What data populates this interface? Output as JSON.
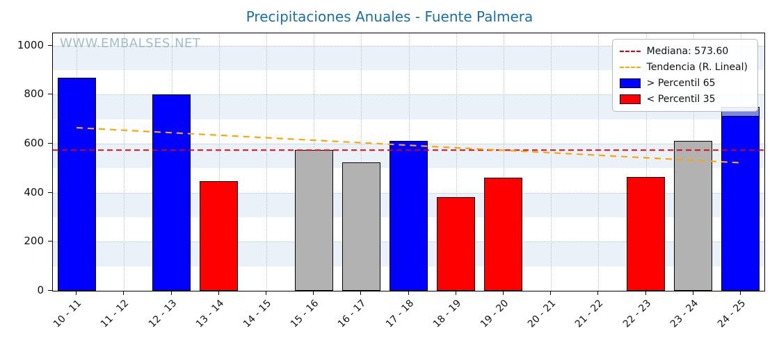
{
  "watermark": "WWW.EMBALSES.NET",
  "palette": {
    "blue": "#0000ff",
    "red": "#ff0000",
    "silver": "#b2b2b2",
    "median_line": "#dd0000",
    "trend_line": "#ffa500",
    "band": "#eaf1f8",
    "title": "#1a6fa3",
    "watermark": "#9fbcd2",
    "partial_bar": "#7b87e6"
  },
  "legend": {
    "position": "upper right",
    "items": [
      {
        "label": "Mediana: 573.60",
        "swatch": "line-red"
      },
      {
        "label": "Tendencia (R. Lineal)",
        "swatch": "line-orange"
      },
      {
        "label": "> Percentil 65",
        "swatch": "box-blue"
      },
      {
        "label": "< Percentil 35",
        "swatch": "box-red"
      }
    ]
  },
  "chart_data": {
    "type": "bar",
    "title": "Precipitaciones Anuales - Fuente Palmera",
    "xlabel": "",
    "ylabel": "",
    "categories": [
      "10 - 11",
      "11 - 12",
      "12 - 13",
      "13 - 14",
      "14 - 15",
      "15 - 16",
      "16 - 17",
      "17 - 18",
      "18 - 19",
      "19 - 20",
      "20 - 21",
      "21 - 22",
      "22 - 23",
      "23 - 24",
      "24 - 25"
    ],
    "values": [
      870,
      0,
      800,
      448,
      0,
      575,
      525,
      612,
      383,
      460,
      0,
      0,
      465,
      610,
      750
    ],
    "bar_colors": [
      "blue",
      "none",
      "blue",
      "red",
      "none",
      "silver",
      "silver",
      "blue",
      "red",
      "red",
      "none",
      "none",
      "red",
      "silver",
      "blue"
    ],
    "partial_top": {
      "index": 14,
      "from": 710,
      "to": 750
    },
    "median": 573.6,
    "trend": {
      "y_start": 665,
      "y_end": 522
    },
    "ylim": [
      0,
      1050
    ],
    "yticks": [
      0,
      200,
      400,
      600,
      800,
      1000
    ],
    "shade_bands": [
      [
        100,
        200
      ],
      [
        300,
        400
      ],
      [
        500,
        600
      ],
      [
        700,
        800
      ],
      [
        900,
        1000
      ]
    ],
    "grid": true,
    "legend_position": "upper right"
  }
}
